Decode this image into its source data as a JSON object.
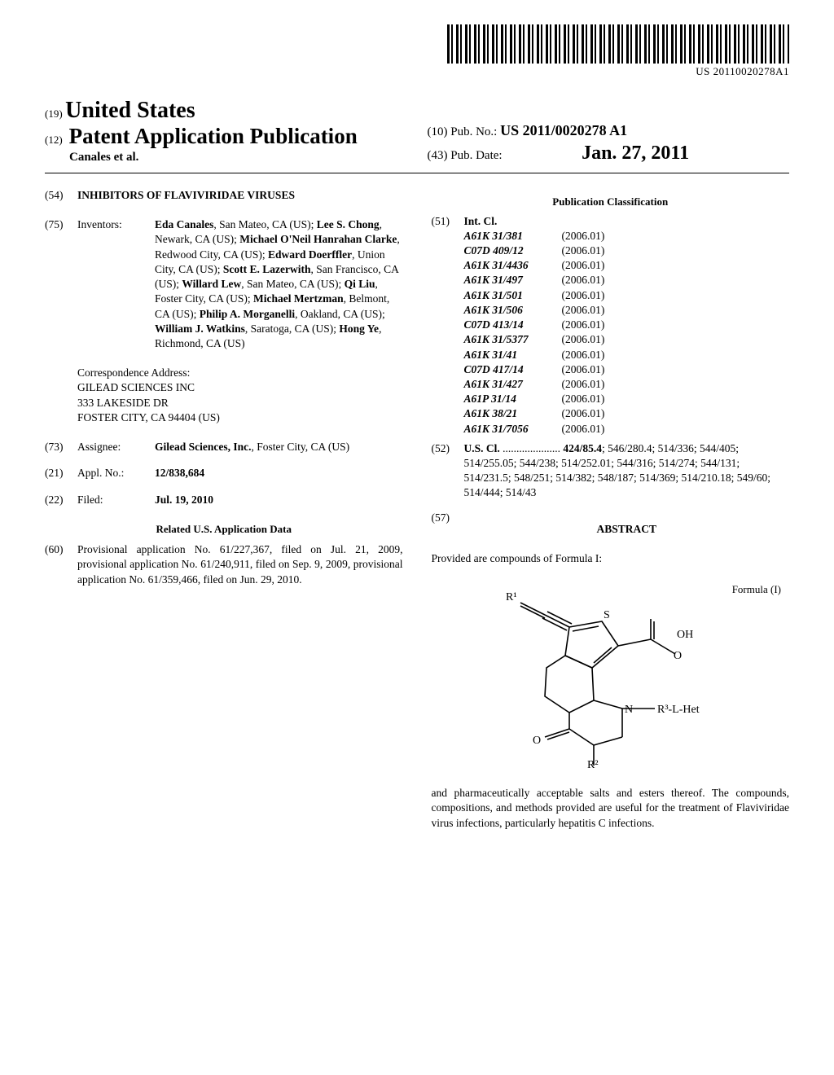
{
  "barcode_text": "US 20110020278A1",
  "auth_code": "(19)",
  "country": "United States",
  "pub_code": "(12)",
  "pub_title": "Patent Application Publication",
  "authors_line": "Canales et al.",
  "pubno_code": "(10)",
  "pubno_label": "Pub. No.:",
  "pubno_value": "US 2011/0020278 A1",
  "pubdate_code": "(43)",
  "pubdate_label": "Pub. Date:",
  "pubdate_value": "Jan. 27, 2011",
  "title_code": "(54)",
  "title_value": "INHIBITORS OF FLAVIVIRIDAE VIRUSES",
  "inventors_code": "(75)",
  "inventors_label": "Inventors:",
  "inventors": [
    {
      "name": "Eda Canales",
      "loc": "San Mateo, CA (US)"
    },
    {
      "name": "Lee S. Chong",
      "loc": "Newark, CA (US)"
    },
    {
      "name": "Michael O'Neil Hanrahan Clarke",
      "loc": "Redwood City, CA (US)"
    },
    {
      "name": "Edward Doerffler",
      "loc": "Union City, CA (US)"
    },
    {
      "name": "Scott E. Lazerwith",
      "loc": "San Francisco, CA (US)"
    },
    {
      "name": "Willard Lew",
      "loc": "San Mateo, CA (US)"
    },
    {
      "name": "Qi Liu",
      "loc": "Foster City, CA (US)"
    },
    {
      "name": "Michael Mertzman",
      "loc": "Belmont, CA (US)"
    },
    {
      "name": "Philip A. Morganelli",
      "loc": "Oakland, CA (US)"
    },
    {
      "name": "William J. Watkins",
      "loc": "Saratoga, CA (US)"
    },
    {
      "name": "Hong Ye",
      "loc": "Richmond, CA (US)"
    }
  ],
  "corr_label": "Correspondence Address:",
  "corr_line1": "GILEAD SCIENCES INC",
  "corr_line2": "333 LAKESIDE DR",
  "corr_line3": "FOSTER CITY, CA 94404 (US)",
  "assignee_code": "(73)",
  "assignee_label": "Assignee:",
  "assignee_value": "Gilead Sciences, Inc.",
  "assignee_loc": "Foster City, CA (US)",
  "applno_code": "(21)",
  "applno_label": "Appl. No.:",
  "applno_value": "12/838,684",
  "filed_code": "(22)",
  "filed_label": "Filed:",
  "filed_value": "Jul. 19, 2010",
  "relapp_heading": "Related U.S. Application Data",
  "relapp_code": "(60)",
  "relapp_text": "Provisional application No. 61/227,367, filed on Jul. 21, 2009, provisional application No. 61/240,911, filed on Sep. 9, 2009, provisional application No. 61/359,466, filed on Jun. 29, 2010.",
  "pubclass_heading": "Publication Classification",
  "intcl_code": "(51)",
  "intcl_label": "Int. Cl.",
  "intcl": [
    {
      "c": "A61K 31/381",
      "y": "(2006.01)"
    },
    {
      "c": "C07D 409/12",
      "y": "(2006.01)"
    },
    {
      "c": "A61K 31/4436",
      "y": "(2006.01)"
    },
    {
      "c": "A61K 31/497",
      "y": "(2006.01)"
    },
    {
      "c": "A61K 31/501",
      "y": "(2006.01)"
    },
    {
      "c": "A61K 31/506",
      "y": "(2006.01)"
    },
    {
      "c": "C07D 413/14",
      "y": "(2006.01)"
    },
    {
      "c": "A61K 31/5377",
      "y": "(2006.01)"
    },
    {
      "c": "A61K 31/41",
      "y": "(2006.01)"
    },
    {
      "c": "C07D 417/14",
      "y": "(2006.01)"
    },
    {
      "c": "A61K 31/427",
      "y": "(2006.01)"
    },
    {
      "c": "A61P 31/14",
      "y": "(2006.01)"
    },
    {
      "c": "A61K 38/21",
      "y": "(2006.01)"
    },
    {
      "c": "A61K 31/7056",
      "y": "(2006.01)"
    }
  ],
  "uscl_code": "(52)",
  "uscl_label": "U.S. Cl.",
  "uscl_lead": "424/85.4",
  "uscl_rest": "; 546/280.4; 514/336; 544/405; 514/255.05; 544/238; 514/252.01; 544/316; 514/274; 544/131; 514/231.5; 548/251; 514/382; 548/187; 514/369; 514/210.18; 549/60; 514/444; 514/43",
  "abstract_code": "(57)",
  "abstract_heading": "ABSTRACT",
  "abstract_line1": "Provided are compounds of Formula I:",
  "formula_label": "Formula (I)",
  "formula_atoms": {
    "r1": "R¹",
    "s": "S",
    "oh": "OH",
    "o1": "O",
    "n": "N",
    "o2": "O",
    "r2": "R²",
    "r3": "R³-L-Het"
  },
  "abstract_line2": "and pharmaceutically acceptable salts and esters thereof. The compounds, compositions, and methods provided are useful for the treatment of Flaviviridae virus infections, particularly hepatitis C infections."
}
